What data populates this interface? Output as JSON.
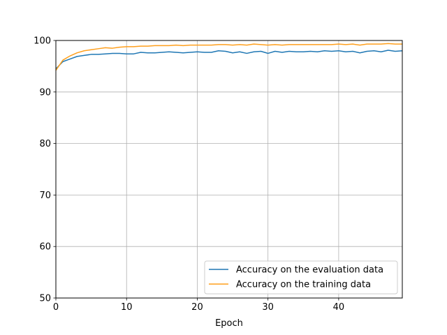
{
  "chart_data": {
    "type": "line",
    "title": "",
    "xlabel": "Epoch",
    "ylabel": "",
    "xlim": [
      0,
      49
    ],
    "ylim": [
      50,
      100
    ],
    "xticks": [
      0,
      10,
      20,
      30,
      40
    ],
    "yticks": [
      50,
      60,
      70,
      80,
      90,
      100
    ],
    "grid": true,
    "legend_position": "lower right",
    "x": [
      0,
      1,
      2,
      3,
      4,
      5,
      6,
      7,
      8,
      9,
      10,
      11,
      12,
      13,
      14,
      15,
      16,
      17,
      18,
      19,
      20,
      21,
      22,
      23,
      24,
      25,
      26,
      27,
      28,
      29,
      30,
      31,
      32,
      33,
      34,
      35,
      36,
      37,
      38,
      39,
      40,
      41,
      42,
      43,
      44,
      45,
      46,
      47,
      48,
      49
    ],
    "series": [
      {
        "name": "Accuracy on the evaluation data",
        "color": "#1f77b4",
        "values": [
          94.5,
          95.9,
          96.4,
          96.9,
          97.1,
          97.3,
          97.3,
          97.4,
          97.5,
          97.5,
          97.4,
          97.4,
          97.7,
          97.6,
          97.6,
          97.7,
          97.8,
          97.7,
          97.6,
          97.7,
          97.8,
          97.7,
          97.7,
          98.0,
          97.9,
          97.6,
          97.8,
          97.5,
          97.8,
          97.9,
          97.5,
          97.9,
          97.7,
          97.9,
          97.8,
          97.8,
          97.9,
          97.8,
          98.0,
          97.9,
          98.0,
          97.8,
          97.9,
          97.6,
          97.9,
          98.0,
          97.8,
          98.1,
          97.9,
          98.0
        ]
      },
      {
        "name": "Accuracy on the training data",
        "color": "#ff9f1c",
        "values": [
          94.2,
          96.2,
          97.0,
          97.6,
          98.0,
          98.2,
          98.4,
          98.6,
          98.5,
          98.7,
          98.8,
          98.8,
          98.9,
          98.9,
          99.0,
          99.0,
          99.0,
          99.1,
          99.0,
          99.1,
          99.1,
          99.1,
          99.1,
          99.2,
          99.2,
          99.1,
          99.2,
          99.1,
          99.3,
          99.2,
          99.1,
          99.2,
          99.1,
          99.2,
          99.2,
          99.2,
          99.2,
          99.2,
          99.2,
          99.2,
          99.3,
          99.2,
          99.3,
          99.1,
          99.3,
          99.3,
          99.3,
          99.4,
          99.3,
          99.3
        ]
      }
    ]
  }
}
